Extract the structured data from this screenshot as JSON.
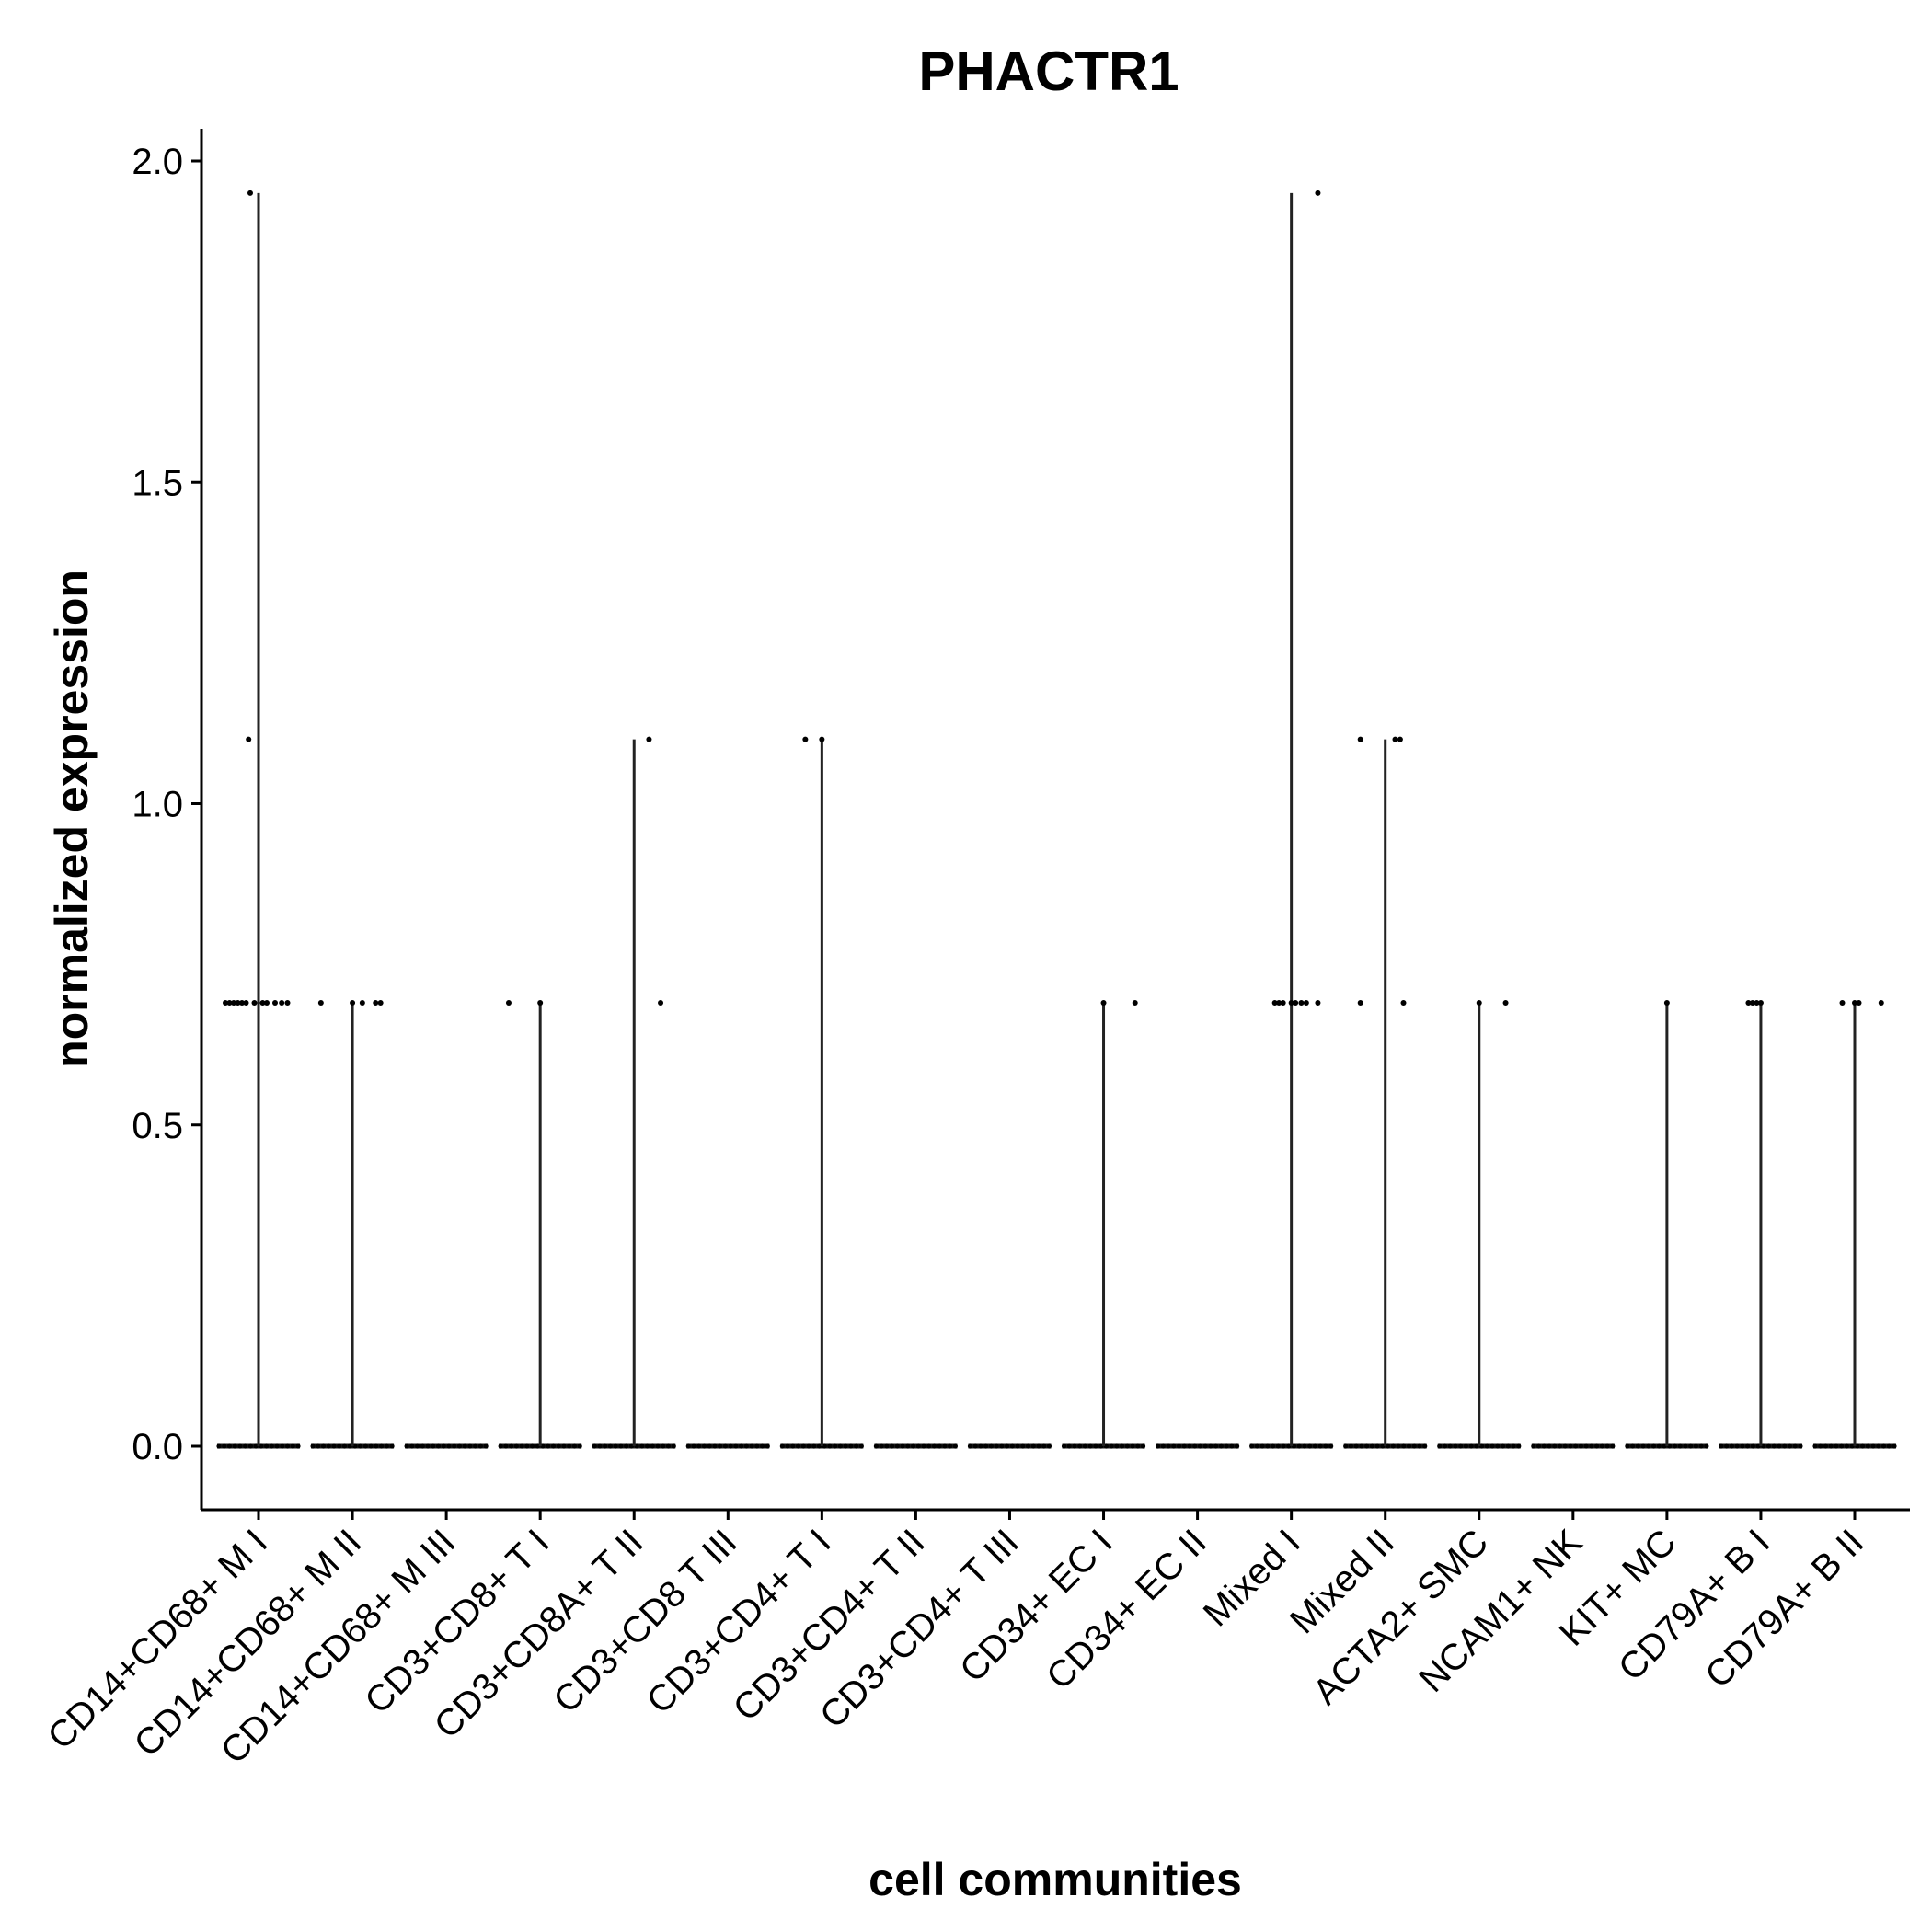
{
  "chart_data": {
    "type": "violin",
    "title": "PHACTR1",
    "xlabel": "cell communities",
    "ylabel": "normalized expression",
    "ylim": [
      -0.1,
      2.05
    ],
    "yticks": [
      "0.0",
      "0.5",
      "1.0",
      "1.5",
      "2.0"
    ],
    "yticks_values": [
      0.0,
      0.5,
      1.0,
      1.5,
      2.0
    ],
    "grid": false,
    "legend": "none",
    "categories": [
      "CD14+CD68+ M I",
      "CD14+CD68+ M II",
      "CD14+CD68+ M III",
      "CD3+CD8+ T I",
      "CD3+CD8A+ T II",
      "CD3+CD8 T III",
      "CD3+CD4+ T I",
      "CD3+CD4+ T II",
      "CD3+CD4+ T III",
      "CD34+ EC I",
      "CD34+ EC II",
      "Mixed I",
      "Mixed II",
      "ACTA2+ SMC",
      "NCAM1+ NK",
      "KIT+ MC",
      "CD79A+ B I",
      "CD79A+ B II"
    ],
    "max_values": [
      1.95,
      0.69,
      0.0,
      0.69,
      1.1,
      0.0,
      1.1,
      0.0,
      0.0,
      0.69,
      0.0,
      1.95,
      1.1,
      0.69,
      0.0,
      0.69,
      0.69,
      0.69
    ],
    "nonzero_points": [
      {
        "category": "CD14+CD68+ M I",
        "values": [
          1.95,
          1.1,
          0.69,
          0.69,
          0.69,
          0.69,
          0.69,
          0.69,
          0.69,
          0.69,
          0.69,
          0.69,
          0.69,
          0.69
        ],
        "jitter": [
          -0.1,
          -0.12,
          -0.4,
          -0.35,
          -0.3,
          -0.25,
          -0.2,
          -0.15,
          -0.05,
          0.05,
          0.1,
          0.2,
          0.28,
          0.35
        ]
      },
      {
        "category": "CD14+CD68+ M II",
        "values": [
          0.69,
          0.69,
          0.69,
          0.69,
          0.69
        ],
        "jitter": [
          -0.38,
          0.0,
          0.12,
          0.28,
          0.34
        ]
      },
      {
        "category": "CD3+CD8+ T I",
        "values": [
          0.69,
          0.69
        ],
        "jitter": [
          -0.38,
          0.0
        ]
      },
      {
        "category": "CD3+CD8A+ T II",
        "values": [
          1.1,
          0.69
        ],
        "jitter": [
          0.18,
          0.32
        ]
      },
      {
        "category": "CD3+CD4+ T I",
        "values": [
          1.1,
          1.1
        ],
        "jitter": [
          -0.2,
          0.0
        ]
      },
      {
        "category": "CD34+ EC I",
        "values": [
          0.69,
          0.69
        ],
        "jitter": [
          0.0,
          0.38
        ]
      },
      {
        "category": "Mixed I",
        "values": [
          1.95,
          0.69,
          0.69,
          0.69,
          0.69,
          0.69,
          0.69,
          0.69,
          0.69
        ],
        "jitter": [
          0.32,
          -0.2,
          -0.15,
          -0.1,
          0.0,
          0.05,
          0.12,
          0.18,
          0.32
        ]
      },
      {
        "category": "Mixed II",
        "values": [
          1.1,
          1.1,
          1.1,
          0.69,
          0.69
        ],
        "jitter": [
          -0.3,
          0.12,
          0.18,
          -0.3,
          0.22
        ]
      },
      {
        "category": "ACTA2+ SMC",
        "values": [
          0.69,
          0.69
        ],
        "jitter": [
          0.0,
          0.32
        ]
      },
      {
        "category": "KIT+ MC",
        "values": [
          0.69
        ],
        "jitter": [
          0.0
        ]
      },
      {
        "category": "CD79A+ B I",
        "values": [
          0.69,
          0.69,
          0.69,
          0.69
        ],
        "jitter": [
          -0.15,
          -0.1,
          -0.05,
          0.0
        ]
      },
      {
        "category": "CD79A+ B II",
        "values": [
          0.69,
          0.69,
          0.69,
          0.69
        ],
        "jitter": [
          -0.15,
          0.0,
          0.05,
          0.32
        ]
      }
    ]
  }
}
